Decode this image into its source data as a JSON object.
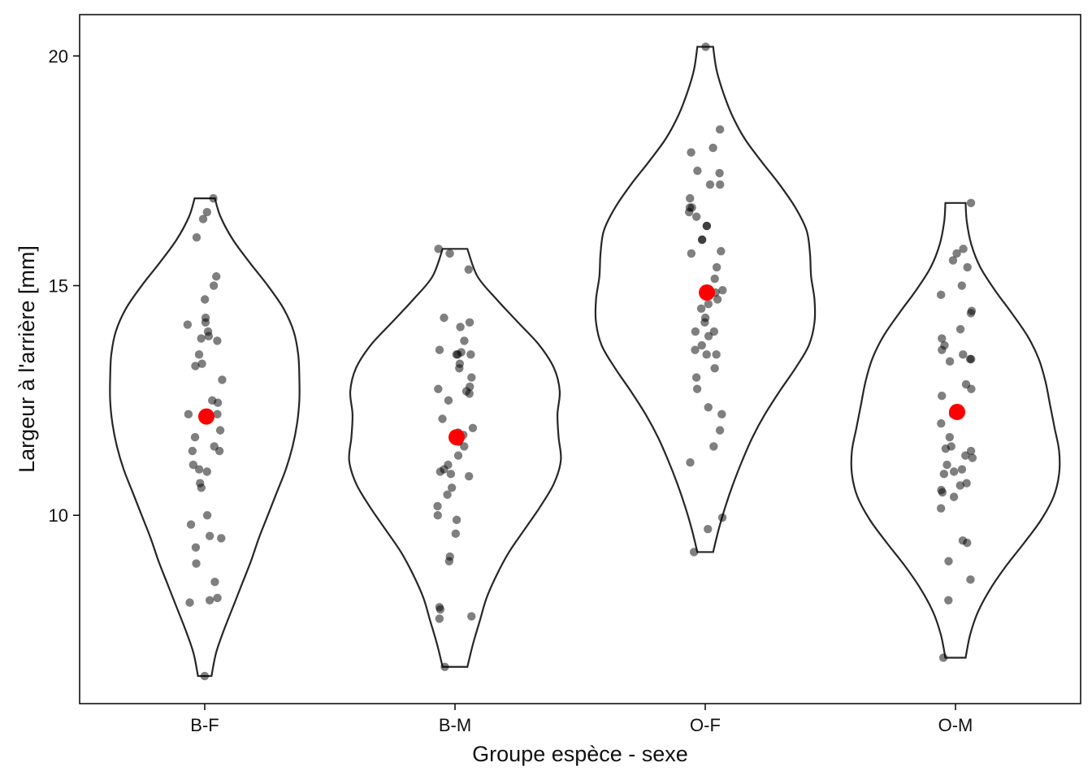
{
  "chart_data": {
    "type": "violin",
    "xlabel": "Groupe espèce - sexe",
    "ylabel": "Largeur à l'arrière  [mm]",
    "ylim": [
      5.9,
      20.9
    ],
    "yticks": [
      10,
      15,
      20
    ],
    "grid": false,
    "colors": {
      "outline": "#262626",
      "points": "#000000",
      "mean": "#ff0000"
    },
    "categories": [
      "B-F",
      "B-M",
      "O-F",
      "O-M"
    ],
    "groups": [
      {
        "name": "B-F",
        "mean": 12.15,
        "min": 6.5,
        "max": 16.9,
        "density": [
          [
            6.5,
            0.06
          ],
          [
            7.0,
            0.1
          ],
          [
            7.5,
            0.17
          ],
          [
            8.0,
            0.25
          ],
          [
            8.5,
            0.33
          ],
          [
            9.0,
            0.41
          ],
          [
            9.5,
            0.48
          ],
          [
            10.0,
            0.56
          ],
          [
            10.5,
            0.64
          ],
          [
            11.0,
            0.72
          ],
          [
            11.5,
            0.78
          ],
          [
            12.0,
            0.82
          ],
          [
            12.5,
            0.84
          ],
          [
            13.0,
            0.84
          ],
          [
            13.5,
            0.83
          ],
          [
            14.0,
            0.79
          ],
          [
            14.5,
            0.7
          ],
          [
            15.0,
            0.56
          ],
          [
            15.5,
            0.4
          ],
          [
            16.0,
            0.25
          ],
          [
            16.5,
            0.14
          ],
          [
            16.9,
            0.09
          ]
        ],
        "points": [
          16.9,
          16.6,
          16.45,
          16.05,
          15.2,
          15.0,
          14.7,
          14.3,
          14.2,
          14.15,
          14.0,
          13.9,
          13.85,
          13.8,
          13.5,
          13.3,
          13.25,
          12.95,
          12.5,
          12.45,
          12.2,
          12.2,
          12.1,
          11.85,
          11.7,
          11.5,
          11.4,
          11.4,
          11.1,
          11.0,
          10.95,
          10.7,
          10.6,
          10.0,
          9.8,
          9.55,
          9.5,
          9.3,
          8.95,
          8.55,
          8.2,
          8.15,
          8.1,
          6.5
        ]
      },
      {
        "name": "B-M",
        "mean": 11.7,
        "min": 6.7,
        "max": 15.8,
        "density": [
          [
            6.7,
            0.11
          ],
          [
            7.2,
            0.16
          ],
          [
            7.7,
            0.22
          ],
          [
            8.2,
            0.28
          ],
          [
            8.7,
            0.37
          ],
          [
            9.2,
            0.48
          ],
          [
            9.7,
            0.62
          ],
          [
            10.2,
            0.76
          ],
          [
            10.7,
            0.88
          ],
          [
            11.2,
            0.94
          ],
          [
            11.7,
            0.92
          ],
          [
            12.2,
            0.91
          ],
          [
            12.7,
            0.93
          ],
          [
            13.2,
            0.88
          ],
          [
            13.7,
            0.75
          ],
          [
            14.2,
            0.56
          ],
          [
            14.7,
            0.37
          ],
          [
            15.2,
            0.2
          ],
          [
            15.8,
            0.11
          ]
        ],
        "points": [
          15.8,
          15.7,
          15.35,
          14.3,
          14.2,
          14.1,
          13.8,
          13.6,
          13.55,
          13.5,
          13.5,
          13.5,
          13.3,
          13.2,
          13.0,
          12.8,
          12.75,
          12.7,
          12.65,
          12.5,
          12.1,
          11.9,
          11.8,
          11.75,
          11.6,
          11.5,
          11.3,
          11.1,
          11.0,
          10.95,
          10.9,
          10.85,
          10.6,
          10.45,
          10.2,
          10.0,
          9.9,
          9.6,
          9.1,
          9.0,
          8.0,
          7.95,
          7.8,
          7.75,
          6.7
        ]
      },
      {
        "name": "O-F",
        "mean": 14.85,
        "min": 9.2,
        "max": 20.2,
        "density": [
          [
            9.2,
            0.07
          ],
          [
            9.7,
            0.12
          ],
          [
            10.2,
            0.18
          ],
          [
            10.7,
            0.25
          ],
          [
            11.2,
            0.33
          ],
          [
            11.7,
            0.42
          ],
          [
            12.2,
            0.53
          ],
          [
            12.7,
            0.66
          ],
          [
            13.2,
            0.8
          ],
          [
            13.7,
            0.92
          ],
          [
            14.2,
            0.97
          ],
          [
            14.7,
            0.97
          ],
          [
            15.2,
            0.94
          ],
          [
            15.7,
            0.93
          ],
          [
            16.2,
            0.9
          ],
          [
            16.7,
            0.8
          ],
          [
            17.2,
            0.66
          ],
          [
            17.7,
            0.5
          ],
          [
            18.2,
            0.35
          ],
          [
            18.7,
            0.24
          ],
          [
            19.2,
            0.16
          ],
          [
            19.7,
            0.1
          ],
          [
            20.2,
            0.07
          ]
        ],
        "points": [
          20.2,
          18.4,
          18.0,
          17.9,
          17.5,
          17.45,
          17.2,
          17.2,
          16.9,
          16.7,
          16.7,
          16.6,
          16.5,
          16.3,
          16.3,
          16.0,
          16.0,
          15.75,
          15.7,
          15.4,
          15.15,
          14.9,
          14.85,
          14.7,
          14.6,
          14.5,
          14.3,
          14.2,
          14.0,
          14.0,
          13.9,
          13.7,
          13.6,
          13.5,
          13.5,
          13.2,
          13.0,
          12.75,
          12.35,
          12.2,
          11.85,
          11.5,
          11.15,
          9.95,
          9.7,
          9.2
        ]
      },
      {
        "name": "O-M",
        "mean": 12.25,
        "min": 6.9,
        "max": 16.8,
        "density": [
          [
            6.9,
            0.09
          ],
          [
            7.4,
            0.13
          ],
          [
            7.9,
            0.2
          ],
          [
            8.4,
            0.31
          ],
          [
            8.9,
            0.45
          ],
          [
            9.4,
            0.61
          ],
          [
            9.9,
            0.76
          ],
          [
            10.4,
            0.87
          ],
          [
            10.9,
            0.92
          ],
          [
            11.4,
            0.92
          ],
          [
            11.9,
            0.88
          ],
          [
            12.4,
            0.84
          ],
          [
            12.9,
            0.8
          ],
          [
            13.4,
            0.74
          ],
          [
            13.9,
            0.64
          ],
          [
            14.4,
            0.5
          ],
          [
            14.9,
            0.35
          ],
          [
            15.4,
            0.22
          ],
          [
            15.9,
            0.14
          ],
          [
            16.4,
            0.1
          ],
          [
            16.8,
            0.09
          ]
        ],
        "points": [
          16.8,
          15.8,
          15.7,
          15.55,
          15.4,
          15.0,
          14.8,
          14.45,
          14.4,
          14.05,
          13.85,
          13.7,
          13.6,
          13.5,
          13.4,
          13.4,
          13.35,
          12.85,
          12.75,
          12.6,
          12.3,
          12.2,
          12.0,
          11.7,
          11.5,
          11.45,
          11.4,
          11.3,
          11.25,
          11.1,
          11.0,
          10.95,
          10.9,
          10.7,
          10.65,
          10.55,
          10.5,
          10.4,
          10.15,
          9.45,
          9.4,
          9.0,
          8.6,
          8.15,
          6.9
        ]
      }
    ]
  }
}
